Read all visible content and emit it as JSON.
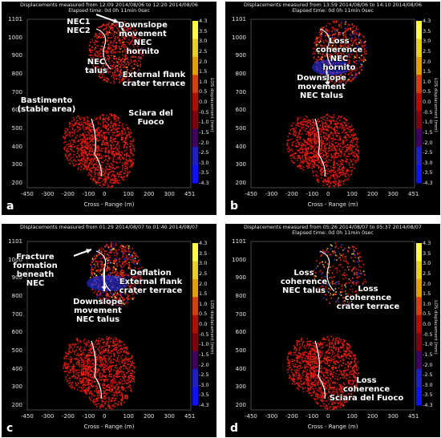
{
  "colorbar": {
    "label": "LOS displacement (mm)",
    "ticks": [
      "4.3",
      "3.5",
      "3.0",
      "2.5",
      "2.0",
      "1.5",
      "1.0",
      "0.5",
      "0.0",
      "-0.5",
      "-1.0",
      "-1.5",
      "-2.0",
      "-2.5",
      "-3.0",
      "-3.5",
      "-4.3"
    ],
    "colors": [
      "#ffff40",
      "#e8d020",
      "#e0a000",
      "#d04010",
      "#b01000",
      "#800010",
      "#400060",
      "#2020c0",
      "#1010ff"
    ]
  },
  "axes": {
    "xlabel": "Cross - Range (m)",
    "xticks": [
      "-450",
      "-300",
      "-200",
      "-100",
      "0",
      "100",
      "200",
      "300",
      "451"
    ],
    "yticks": [
      "1101",
      "1000",
      "900",
      "800",
      "700",
      "600",
      "500",
      "400",
      "300",
      "200"
    ]
  },
  "panels": [
    {
      "id": "a",
      "title": "Displacements measured from 12:09 2014/08/06 to 12:20 2014/08/06",
      "elapsed": "Elapsed time: 0d 0h 11min 0sec",
      "annotations": [
        {
          "text": "NEC1\nNEC2"
        },
        {
          "text": "Downslope\nmovement\nNEC\nhornito"
        },
        {
          "text": "NEC\ntalus"
        },
        {
          "text": "External flank\ncrater terrace"
        },
        {
          "text": "Bastimento\n(stable area)"
        },
        {
          "text": "Sciara del\nFuoco"
        }
      ]
    },
    {
      "id": "b",
      "title": "Displacements measured from 13:59 2014/08/06 to 14:10 2014/08/06",
      "elapsed": "Elapsed time: 0d 0h 11min 0sec",
      "annotations": [
        {
          "text": "Loss\ncoherence\nNEC\nhornito"
        },
        {
          "text": "Downslope\nmovement\nNEC talus"
        }
      ]
    },
    {
      "id": "c",
      "title": "Displacements measured from 01:29 2014/08/07 to 01:40 2014/08/07",
      "elapsed": "",
      "annotations": [
        {
          "text": "Fracture\nformation\nbeneath\nNEC"
        },
        {
          "text": "Deflation\nExternal flank\ncrater terrace"
        },
        {
          "text": "Downslope\nmovement\nNEC talus"
        }
      ]
    },
    {
      "id": "d",
      "title": "Displacements measured from 05:26 2014/08/07 to 05:37 2014/08/07",
      "elapsed": "Elapsed time: 0d 0h 11min 0sec",
      "annotations": [
        {
          "text": "Loss\ncoherence\nNEC talus"
        },
        {
          "text": "Loss\ncoherence\ncrater terrace"
        },
        {
          "text": "Loss\ncoherence\nSciara del Fuoco"
        }
      ]
    }
  ]
}
